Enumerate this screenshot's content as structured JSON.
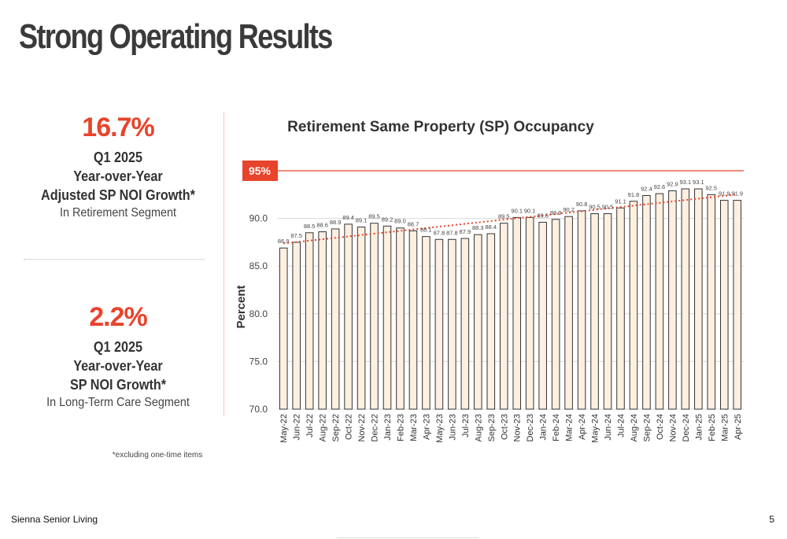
{
  "page": {
    "title": "Strong Operating Results",
    "footer_left": "Sienna Senior Living",
    "page_number": "5",
    "footnote": "*excluding one-time items"
  },
  "stats": [
    {
      "value": "16.7%",
      "lines": [
        "Q1 2025",
        "Year-over-Year",
        "Adjusted SP NOI Growth*"
      ],
      "sub": "In Retirement Segment"
    },
    {
      "value": "2.2%",
      "lines": [
        "Q1 2025",
        "Year-over-Year",
        "SP NOI Growth*"
      ],
      "sub": "In Long-Term Care Segment"
    }
  ],
  "colors": {
    "accent": "#e8432b",
    "bar_fill": "#fdf0e1",
    "bar_stroke": "#333333",
    "trend": "#e8432b",
    "grid": "#d9d9d9"
  },
  "chart_data": {
    "type": "bar",
    "title": "Retirement Same Property (SP) Occupancy",
    "ylabel": "Percent",
    "ylim": [
      70,
      95
    ],
    "yticks": [
      "70.0",
      "75.0",
      "80.0",
      "85.0",
      "90.0"
    ],
    "yticks_values": [
      70,
      75,
      80,
      85,
      90
    ],
    "grid": true,
    "reference_line": {
      "value": 95,
      "label": "95%"
    },
    "trendline": "linear",
    "categories": [
      "May-22",
      "Jun-22",
      "Jul-22",
      "Aug-22",
      "Sep-22",
      "Oct-22",
      "Nov-22",
      "Dec-22",
      "Jan-23",
      "Feb-23",
      "Mar-23",
      "Apr-23",
      "May-23",
      "Jun-23",
      "Jul-23",
      "Aug-23",
      "Sep-23",
      "Oct-23",
      "Nov-23",
      "Dec-23",
      "Jan-24",
      "Feb-24",
      "Mar-24",
      "Apr-24",
      "May-24",
      "Jun-24",
      "Jul-24",
      "Aug-24",
      "Sep-24",
      "Oct-24",
      "Nov-24",
      "Dec-24",
      "Jan-25",
      "Feb-25",
      "Mar-25",
      "Apr-25"
    ],
    "values": [
      86.9,
      87.5,
      88.5,
      88.6,
      88.9,
      89.4,
      89.1,
      89.5,
      89.2,
      89.0,
      88.7,
      88.1,
      87.8,
      87.8,
      87.9,
      88.3,
      88.4,
      89.5,
      90.1,
      90.1,
      89.6,
      89.9,
      90.2,
      90.8,
      90.5,
      90.5,
      91.1,
      91.8,
      92.4,
      92.6,
      92.9,
      93.1,
      93.1,
      92.5,
      91.9,
      91.9
    ],
    "value_labels": [
      "86.9",
      "87.5",
      "88.5",
      "88.6",
      "88.9",
      "89.4",
      "89.1",
      "89.5",
      "89.2",
      "89.0",
      "88.7",
      "88.1",
      "87.8",
      "87.8",
      "87.9",
      "88.3",
      "88.4",
      "89.5",
      "90.1",
      "90.1",
      "89.6",
      "89.9",
      "90.2",
      "90.8",
      "90.5",
      "90.5",
      "91.1",
      "91.8",
      "92.4",
      "92.6",
      "92.9",
      "93.1",
      "93.1",
      "92.5",
      "91.9",
      "91.9"
    ]
  }
}
